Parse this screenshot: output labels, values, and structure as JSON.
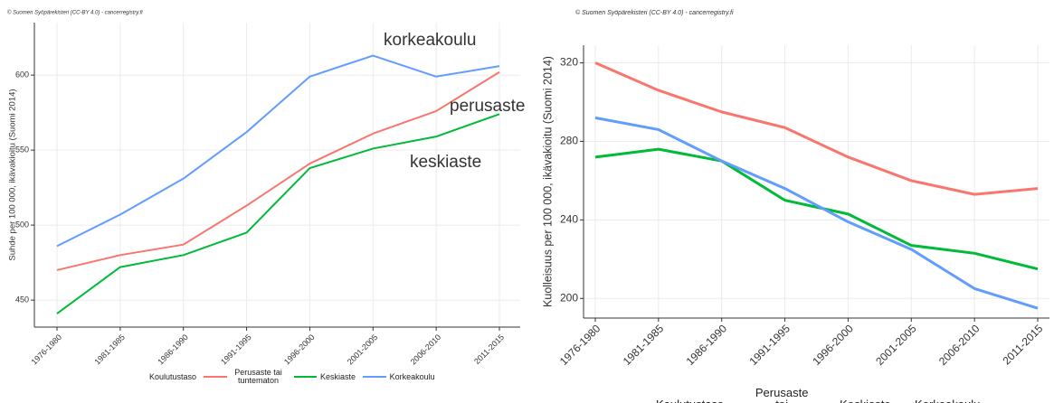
{
  "chart_data": [
    {
      "type": "line",
      "caption": "© Suomen Syöpärekisteri (CC-BY 4.0) - cancerregistry.fi",
      "y_label": "Suhde per 100 000, ikävakioitu (Suomi 2014)",
      "categories": [
        "1976-1980",
        "1981-1985",
        "1986-1990",
        "1991-1995",
        "1996-2000",
        "2001-2005",
        "2006-2010",
        "2011-2015"
      ],
      "series": [
        {
          "name": "Perusaste tai tuntematon",
          "color": "#F8766D",
          "values": [
            470,
            480,
            487,
            513,
            541,
            561,
            576,
            602
          ]
        },
        {
          "name": "Keskiaste",
          "color": "#00BA38",
          "values": [
            441,
            472,
            480,
            495,
            538,
            551,
            559,
            574
          ]
        },
        {
          "name": "Korkeakoulu",
          "color": "#619CFF",
          "values": [
            486,
            507,
            531,
            562,
            599,
            613,
            599,
            606
          ]
        }
      ],
      "annotations": [
        "korkeakoulu",
        "perusaste",
        "keskiaste"
      ],
      "legend_title": "Koulutustaso",
      "ylim": [
        432,
        635
      ],
      "yticks": [
        450,
        500,
        550,
        600
      ],
      "grid": true
    },
    {
      "type": "line",
      "caption": "© Suomen Syöpärekisteri (CC-BY 4.0) - cancerregistry.fi",
      "y_label": "Kuolleisuus per 100 000, ikävakioitu (Suomi 2014)",
      "categories": [
        "1976-1980",
        "1981-1985",
        "1986-1990",
        "1991-1995",
        "1996-2000",
        "2001-2005",
        "2006-2010",
        "2011-2015"
      ],
      "series": [
        {
          "name": "Perusaste tai tuntematon",
          "color": "#F8766D",
          "values": [
            320,
            306,
            295,
            287,
            272,
            260,
            253,
            256
          ]
        },
        {
          "name": "Keskiaste",
          "color": "#00BA38",
          "values": [
            272,
            276,
            270,
            250,
            243,
            227,
            223,
            215
          ]
        },
        {
          "name": "Korkeakoulu",
          "color": "#619CFF",
          "values": [
            292,
            286,
            270,
            256,
            239,
            225,
            205,
            195
          ]
        }
      ],
      "legend_title": "Koulutustaso",
      "ylim": [
        190,
        329
      ],
      "yticks": [
        200,
        240,
        280,
        320
      ],
      "grid": true
    }
  ]
}
